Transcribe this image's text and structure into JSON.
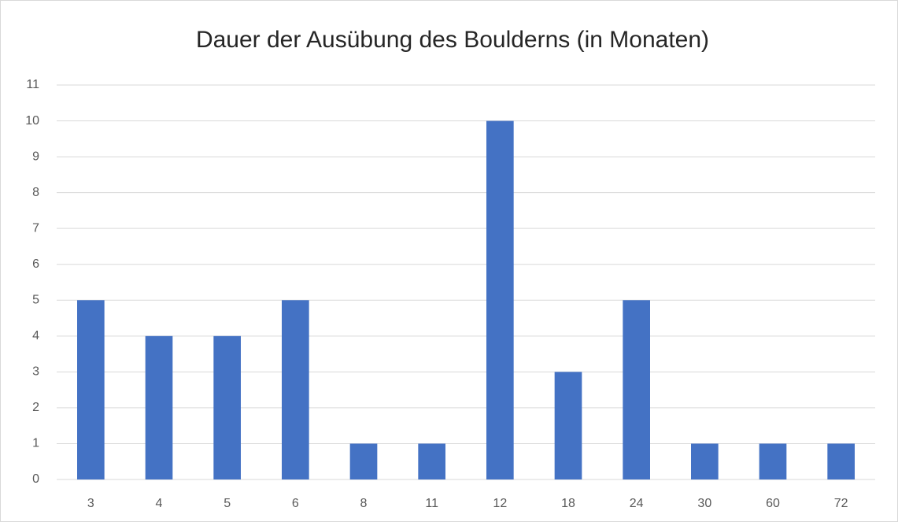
{
  "chart_data": {
    "type": "bar",
    "title": "Dauer der Ausübung des Boulderns (in Monaten)",
    "categories": [
      "3",
      "4",
      "5",
      "6",
      "8",
      "11",
      "12",
      "18",
      "24",
      "30",
      "60",
      "72"
    ],
    "values": [
      5,
      4,
      4,
      5,
      1,
      1,
      10,
      3,
      5,
      1,
      1,
      1
    ],
    "color": "#4472c4",
    "ylim": [
      0,
      11
    ],
    "yticks": [
      0,
      1,
      2,
      3,
      4,
      5,
      6,
      7,
      8,
      9,
      10,
      11
    ],
    "grid": true
  }
}
